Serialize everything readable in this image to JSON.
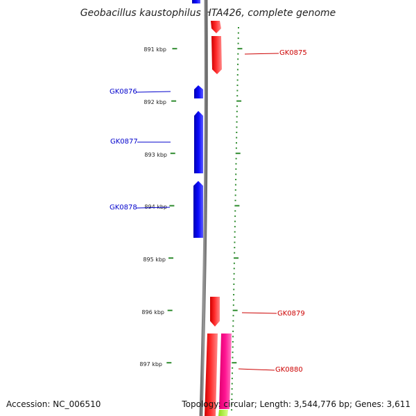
{
  "title": "Geobacillus kaustophilus HTA426, complete genome",
  "footer": {
    "accession": "Accession: NC_006510",
    "topology": "Topology: circular; Length: 3,544,776 bp; Genes: 3,611"
  },
  "colors": {
    "background": "#ffffff",
    "backbone": "#8c8c8c",
    "tick": "#2e8b2e",
    "forward_gene": "#ff0000",
    "reverse_gene": "#0000ff",
    "forward_label": "#cc0000",
    "reverse_label": "#0000cc",
    "pink_gene": "#ff1493",
    "lime_gene": "#adff2f"
  },
  "scale_labels": [
    "891 kbp",
    "892 kbp",
    "893 kbp",
    "894 kbp",
    "895 kbp",
    "896 kbp",
    "897 kbp"
  ],
  "forward_gene_labels": [
    "GK0875",
    "GK0879",
    "GK0880"
  ],
  "reverse_gene_labels": [
    "GK0876",
    "GK0877",
    "GK0878"
  ]
}
